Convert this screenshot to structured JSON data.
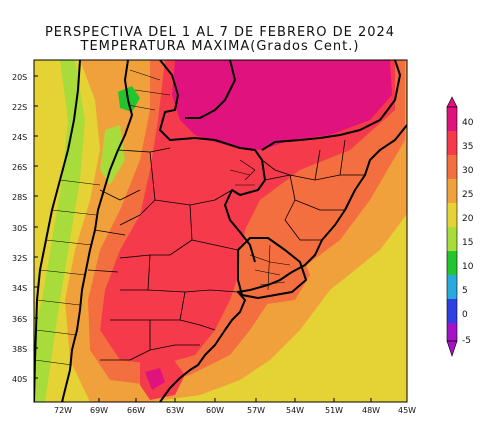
{
  "title": {
    "line1": "PERSPECTIVA DEL 1 AL 7 DE FEBRERO DE 2024",
    "line2": "TEMPERATURA MAXIMA(Grados Cent.)"
  },
  "map": {
    "lat_labels": [
      "20S",
      "22S",
      "24S",
      "26S",
      "28S",
      "30S",
      "32S",
      "34S",
      "36S",
      "38S",
      "40S"
    ],
    "lon_labels": [
      "72W",
      "69W",
      "66W",
      "63W",
      "60W",
      "57W",
      "54W",
      "51W",
      "48W",
      "45W"
    ]
  },
  "colorbar": {
    "labels": [
      "40",
      "35",
      "30",
      "25",
      "20",
      "15",
      "10",
      "5",
      "0",
      "-5"
    ],
    "colors": [
      "#e0127e",
      "#f53b4b",
      "#f36f3f",
      "#f1a13b",
      "#e5d335",
      "#a8dc3a",
      "#22c52e",
      "#29a9dd",
      "#2f3fe0",
      "#a314c8"
    ]
  },
  "palette": {
    "magenta": "#e0127e",
    "red": "#f53b4b",
    "orange_red": "#f36f3f",
    "orange": "#f1a13b",
    "yellow": "#e5d335",
    "light_green": "#a8dc3a",
    "green": "#22c52e"
  }
}
